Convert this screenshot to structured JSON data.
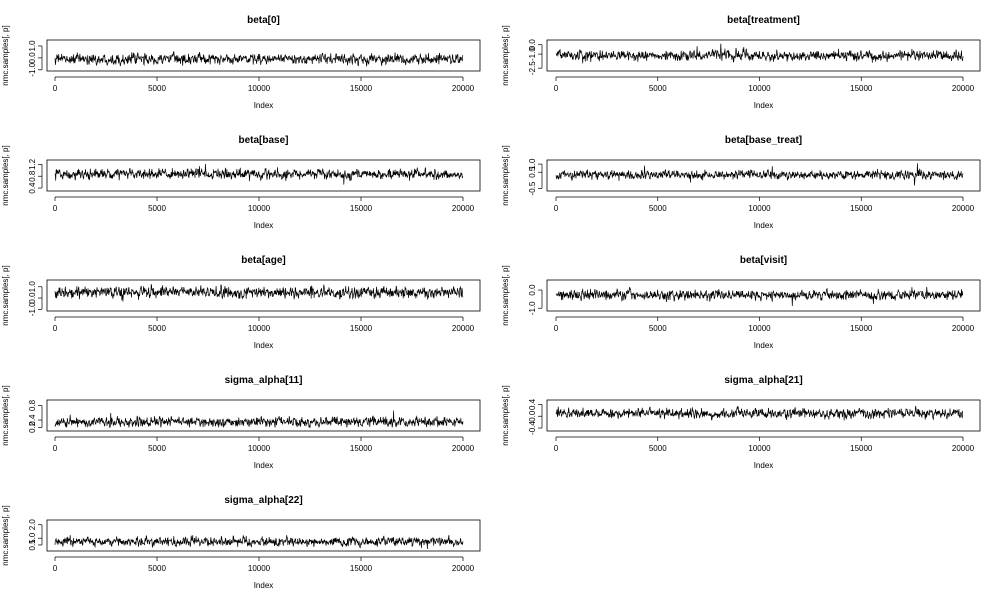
{
  "chart_data": [
    {
      "type": "line",
      "title": "beta[0]",
      "xlabel": "Index",
      "ylabel": "nmc.samples[, p]",
      "xlim": [
        0,
        20000
      ],
      "ylim": [
        -1.1,
        1.5
      ],
      "x_ticks": [
        0,
        5000,
        10000,
        15000,
        20000
      ],
      "y_ticks": [
        -1.0,
        0.0,
        1.0
      ],
      "y_tick_labels": [
        "-1.0",
        "0.0",
        "1.0"
      ],
      "series": [
        {
          "n": 20000,
          "center": -0.1,
          "spread": 0.28,
          "min": -0.95,
          "max": 1.3
        }
      ]
    },
    {
      "type": "line",
      "title": "beta[treatment]",
      "xlabel": "Index",
      "ylabel": "nmc.samples[, p]",
      "xlim": [
        0,
        20000
      ],
      "ylim": [
        -2.8,
        0.5
      ],
      "x_ticks": [
        0,
        5000,
        10000,
        15000,
        20000
      ],
      "y_ticks": [
        -2.5,
        -1.0,
        0.0
      ],
      "y_tick_labels": [
        "-2.5",
        "-1.0",
        "0.0"
      ],
      "series": [
        {
          "n": 20000,
          "center": -1.15,
          "spread": 0.35,
          "min": -2.5,
          "max": 0.3
        }
      ]
    },
    {
      "type": "line",
      "title": "beta[base]",
      "xlabel": "Index",
      "ylabel": "nmc.samples[, p]",
      "xlim": [
        0,
        20000
      ],
      "ylim": [
        0.3,
        1.35
      ],
      "x_ticks": [
        0,
        5000,
        10000,
        15000,
        20000
      ],
      "y_ticks": [
        0.4,
        0.8,
        1.2
      ],
      "y_tick_labels": [
        "0.4",
        "0.8",
        "1.2"
      ],
      "series": [
        {
          "n": 20000,
          "center": 0.87,
          "spread": 0.11,
          "min": 0.45,
          "max": 1.28
        }
      ]
    },
    {
      "type": "line",
      "title": "beta[base_treat]",
      "xlabel": "Index",
      "ylabel": "nmc.samples[, p]",
      "xlim": [
        0,
        20000
      ],
      "ylim": [
        -0.65,
        1.25
      ],
      "x_ticks": [
        0,
        5000,
        10000,
        15000,
        20000
      ],
      "y_ticks": [
        -0.5,
        0.5,
        1.0
      ],
      "y_tick_labels": [
        "-0.5",
        "0.5",
        "1.0"
      ],
      "series": [
        {
          "n": 20000,
          "center": 0.33,
          "spread": 0.17,
          "min": -0.4,
          "max": 1.05
        }
      ]
    },
    {
      "type": "line",
      "title": "beta[age]",
      "xlabel": "Index",
      "ylabel": "nmc.samples[, p]",
      "xlim": [
        0,
        20000
      ],
      "ylim": [
        -1.15,
        1.6
      ],
      "x_ticks": [
        0,
        5000,
        10000,
        15000,
        20000
      ],
      "y_ticks": [
        -1.0,
        0.0,
        1.0
      ],
      "y_tick_labels": [
        "-1.0",
        "0.0",
        "1.0"
      ],
      "series": [
        {
          "n": 20000,
          "center": 0.5,
          "spread": 0.33,
          "min": -0.95,
          "max": 1.45
        }
      ]
    },
    {
      "type": "line",
      "title": "beta[visit]",
      "xlabel": "Index",
      "ylabel": "nmc.samples[, p]",
      "xlim": [
        0,
        20000
      ],
      "ylim": [
        -1.15,
        0.55
      ],
      "x_ticks": [
        0,
        5000,
        10000,
        15000,
        20000
      ],
      "y_ticks": [
        -1.0,
        0.0
      ],
      "y_tick_labels": [
        "-1.0",
        "0.0"
      ],
      "series": [
        {
          "n": 20000,
          "center": -0.27,
          "spread": 0.17,
          "min": -0.95,
          "max": 0.45
        }
      ]
    },
    {
      "type": "line",
      "title": "sigma_alpha[11]",
      "xlabel": "Index",
      "ylabel": "nmc.samples[, p]",
      "xlim": [
        0,
        20000
      ],
      "ylim": [
        0.1,
        0.95
      ],
      "x_ticks": [
        0,
        5000,
        10000,
        15000,
        20000
      ],
      "y_ticks": [
        0.2,
        0.4,
        0.8
      ],
      "y_tick_labels": [
        "0.2",
        "0.4",
        "0.8"
      ],
      "series": [
        {
          "n": 20000,
          "center": 0.35,
          "spread": 0.09,
          "min": 0.2,
          "max": 0.9
        }
      ]
    },
    {
      "type": "line",
      "title": "sigma_alpha[21]",
      "xlabel": "Index",
      "ylabel": "nmc.samples[, p]",
      "xlim": [
        0,
        20000
      ],
      "ylim": [
        -0.5,
        0.55
      ],
      "x_ticks": [
        0,
        5000,
        10000,
        15000,
        20000
      ],
      "y_ticks": [
        -0.4,
        0.0,
        0.4
      ],
      "y_tick_labels": [
        "-0.4",
        "0.0",
        "0.4"
      ],
      "series": [
        {
          "n": 20000,
          "center": 0.1,
          "spread": 0.1,
          "min": -0.4,
          "max": 0.5
        }
      ]
    },
    {
      "type": "line",
      "title": "sigma_alpha[22]",
      "xlabel": "Index",
      "ylabel": "nmc.samples[, p]",
      "xlim": [
        0,
        20000
      ],
      "ylim": [
        0.05,
        2.35
      ],
      "x_ticks": [
        0,
        5000,
        10000,
        15000,
        20000
      ],
      "y_ticks": [
        0.5,
        1.0,
        2.0
      ],
      "y_tick_labels": [
        "0.5",
        "1.0",
        "2.0"
      ],
      "series": [
        {
          "n": 20000,
          "center": 0.75,
          "spread": 0.22,
          "min": 0.2,
          "max": 2.2
        }
      ]
    }
  ]
}
